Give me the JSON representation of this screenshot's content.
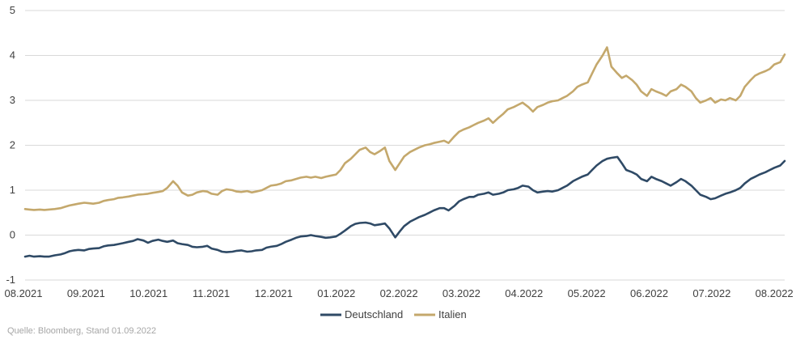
{
  "chart_data": {
    "type": "line",
    "title": "",
    "xlabel": "",
    "ylabel": "",
    "ylim": [
      -1,
      5
    ],
    "y_ticks": [
      "-1",
      "0",
      "1",
      "2",
      "3",
      "4",
      "5"
    ],
    "x_ticks": [
      "08.2021",
      "09.2021",
      "10.2021",
      "11.2021",
      "12.2021",
      "01.2022",
      "02.2022",
      "03.2022",
      "04.2022",
      "05.2022",
      "06.2022",
      "07.2022",
      "08.2022"
    ],
    "grid": "horizontal",
    "legend": "bottom-center",
    "series": [
      {
        "name": "Deutschland",
        "color": "#2f4a66",
        "values": [
          [
            0,
            -0.48
          ],
          [
            0.3,
            -0.46
          ],
          [
            0.6,
            -0.48
          ],
          [
            1,
            -0.47
          ],
          [
            1.3,
            -0.48
          ],
          [
            1.6,
            -0.48
          ],
          [
            2,
            -0.45
          ],
          [
            2.4,
            -0.43
          ],
          [
            2.7,
            -0.4
          ],
          [
            3,
            -0.36
          ],
          [
            3.3,
            -0.34
          ],
          [
            3.6,
            -0.33
          ],
          [
            4,
            -0.34
          ],
          [
            4.3,
            -0.31
          ],
          [
            4.6,
            -0.3
          ],
          [
            5,
            -0.29
          ],
          [
            5.3,
            -0.25
          ],
          [
            5.6,
            -0.23
          ],
          [
            6,
            -0.22
          ],
          [
            6.3,
            -0.2
          ],
          [
            6.6,
            -0.18
          ],
          [
            7,
            -0.15
          ],
          [
            7.3,
            -0.13
          ],
          [
            7.6,
            -0.09
          ],
          [
            8,
            -0.12
          ],
          [
            8.3,
            -0.17
          ],
          [
            8.6,
            -0.13
          ],
          [
            9,
            -0.1
          ],
          [
            9.3,
            -0.13
          ],
          [
            9.6,
            -0.15
          ],
          [
            10,
            -0.12
          ],
          [
            10.3,
            -0.18
          ],
          [
            10.6,
            -0.2
          ],
          [
            11,
            -0.22
          ],
          [
            11.3,
            -0.26
          ],
          [
            11.6,
            -0.27
          ],
          [
            12,
            -0.26
          ],
          [
            12.3,
            -0.24
          ],
          [
            12.6,
            -0.3
          ],
          [
            13,
            -0.33
          ],
          [
            13.3,
            -0.37
          ],
          [
            13.6,
            -0.38
          ],
          [
            14,
            -0.37
          ],
          [
            14.3,
            -0.35
          ],
          [
            14.6,
            -0.34
          ],
          [
            15,
            -0.37
          ],
          [
            15.3,
            -0.36
          ],
          [
            15.6,
            -0.34
          ],
          [
            16,
            -0.33
          ],
          [
            16.3,
            -0.28
          ],
          [
            16.6,
            -0.26
          ],
          [
            17,
            -0.24
          ],
          [
            17.3,
            -0.2
          ],
          [
            17.6,
            -0.15
          ],
          [
            18,
            -0.1
          ],
          [
            18.3,
            -0.06
          ],
          [
            18.6,
            -0.03
          ],
          [
            19,
            -0.02
          ],
          [
            19.3,
            0
          ],
          [
            19.6,
            -0.02
          ],
          [
            20,
            -0.04
          ],
          [
            20.3,
            -0.06
          ],
          [
            20.6,
            -0.05
          ],
          [
            21,
            -0.03
          ],
          [
            21.3,
            0.03
          ],
          [
            21.6,
            0.1
          ],
          [
            22,
            0.2
          ],
          [
            22.3,
            0.25
          ],
          [
            22.6,
            0.27
          ],
          [
            23,
            0.28
          ],
          [
            23.3,
            0.26
          ],
          [
            23.6,
            0.22
          ],
          [
            24,
            0.24
          ],
          [
            24.3,
            0.26
          ],
          [
            24.6,
            0.15
          ],
          [
            25,
            -0.05
          ],
          [
            25.3,
            0.08
          ],
          [
            25.6,
            0.2
          ],
          [
            26,
            0.3
          ],
          [
            26.3,
            0.35
          ],
          [
            26.6,
            0.4
          ],
          [
            27,
            0.45
          ],
          [
            27.3,
            0.5
          ],
          [
            27.6,
            0.55
          ],
          [
            28,
            0.6
          ],
          [
            28.3,
            0.6
          ],
          [
            28.6,
            0.55
          ],
          [
            29,
            0.65
          ],
          [
            29.3,
            0.75
          ],
          [
            29.6,
            0.8
          ],
          [
            30,
            0.85
          ],
          [
            30.3,
            0.85
          ],
          [
            30.6,
            0.9
          ],
          [
            31,
            0.92
          ],
          [
            31.3,
            0.95
          ],
          [
            31.6,
            0.9
          ],
          [
            32,
            0.92
          ],
          [
            32.3,
            0.95
          ],
          [
            32.6,
            1.0
          ],
          [
            33,
            1.02
          ],
          [
            33.3,
            1.05
          ],
          [
            33.6,
            1.1
          ],
          [
            34,
            1.08
          ],
          [
            34.3,
            1.0
          ],
          [
            34.6,
            0.95
          ],
          [
            35,
            0.97
          ],
          [
            35.3,
            0.98
          ],
          [
            35.6,
            0.97
          ],
          [
            36,
            1.0
          ],
          [
            36.3,
            1.05
          ],
          [
            36.6,
            1.1
          ],
          [
            37,
            1.2
          ],
          [
            37.3,
            1.25
          ],
          [
            37.6,
            1.3
          ],
          [
            38,
            1.35
          ],
          [
            38.3,
            1.45
          ],
          [
            38.6,
            1.55
          ],
          [
            39,
            1.65
          ],
          [
            39.3,
            1.7
          ],
          [
            39.6,
            1.72
          ],
          [
            40,
            1.74
          ],
          [
            40.3,
            1.6
          ],
          [
            40.6,
            1.45
          ],
          [
            41,
            1.4
          ],
          [
            41.3,
            1.35
          ],
          [
            41.6,
            1.25
          ],
          [
            42,
            1.2
          ],
          [
            42.3,
            1.3
          ],
          [
            42.6,
            1.25
          ],
          [
            43,
            1.2
          ],
          [
            43.3,
            1.15
          ],
          [
            43.6,
            1.1
          ],
          [
            44,
            1.18
          ],
          [
            44.3,
            1.25
          ],
          [
            44.6,
            1.2
          ],
          [
            45,
            1.1
          ],
          [
            45.3,
            1.0
          ],
          [
            45.6,
            0.9
          ],
          [
            46,
            0.85
          ],
          [
            46.3,
            0.8
          ],
          [
            46.6,
            0.82
          ],
          [
            47,
            0.88
          ],
          [
            47.3,
            0.92
          ],
          [
            47.6,
            0.95
          ],
          [
            48,
            1.0
          ],
          [
            48.3,
            1.05
          ],
          [
            48.6,
            1.15
          ],
          [
            49,
            1.25
          ],
          [
            49.3,
            1.3
          ],
          [
            49.6,
            1.35
          ],
          [
            50,
            1.4
          ],
          [
            50.3,
            1.45
          ],
          [
            50.6,
            1.5
          ],
          [
            51,
            1.55
          ],
          [
            51.3,
            1.65
          ]
        ]
      },
      {
        "name": "Italien",
        "color": "#c4a86c",
        "values": [
          [
            0,
            0.58
          ],
          [
            0.3,
            0.57
          ],
          [
            0.6,
            0.56
          ],
          [
            1,
            0.57
          ],
          [
            1.3,
            0.56
          ],
          [
            1.6,
            0.57
          ],
          [
            2,
            0.58
          ],
          [
            2.4,
            0.6
          ],
          [
            2.7,
            0.63
          ],
          [
            3,
            0.66
          ],
          [
            3.3,
            0.68
          ],
          [
            3.6,
            0.7
          ],
          [
            4,
            0.72
          ],
          [
            4.3,
            0.71
          ],
          [
            4.6,
            0.7
          ],
          [
            5,
            0.72
          ],
          [
            5.3,
            0.76
          ],
          [
            5.6,
            0.78
          ],
          [
            6,
            0.8
          ],
          [
            6.3,
            0.83
          ],
          [
            6.6,
            0.84
          ],
          [
            7,
            0.86
          ],
          [
            7.3,
            0.88
          ],
          [
            7.6,
            0.9
          ],
          [
            8,
            0.91
          ],
          [
            8.3,
            0.92
          ],
          [
            8.6,
            0.94
          ],
          [
            9,
            0.96
          ],
          [
            9.3,
            0.98
          ],
          [
            9.6,
            1.05
          ],
          [
            10,
            1.2
          ],
          [
            10.3,
            1.1
          ],
          [
            10.6,
            0.95
          ],
          [
            11,
            0.88
          ],
          [
            11.3,
            0.9
          ],
          [
            11.6,
            0.95
          ],
          [
            12,
            0.98
          ],
          [
            12.3,
            0.97
          ],
          [
            12.6,
            0.92
          ],
          [
            13,
            0.9
          ],
          [
            13.3,
            0.98
          ],
          [
            13.6,
            1.02
          ],
          [
            14,
            1.0
          ],
          [
            14.3,
            0.97
          ],
          [
            14.6,
            0.96
          ],
          [
            15,
            0.98
          ],
          [
            15.3,
            0.95
          ],
          [
            15.6,
            0.97
          ],
          [
            16,
            1.0
          ],
          [
            16.3,
            1.05
          ],
          [
            16.6,
            1.1
          ],
          [
            17,
            1.12
          ],
          [
            17.3,
            1.15
          ],
          [
            17.6,
            1.2
          ],
          [
            18,
            1.22
          ],
          [
            18.3,
            1.25
          ],
          [
            18.6,
            1.28
          ],
          [
            19,
            1.3
          ],
          [
            19.3,
            1.28
          ],
          [
            19.6,
            1.3
          ],
          [
            20,
            1.27
          ],
          [
            20.3,
            1.3
          ],
          [
            20.6,
            1.32
          ],
          [
            21,
            1.35
          ],
          [
            21.3,
            1.45
          ],
          [
            21.6,
            1.6
          ],
          [
            22,
            1.7
          ],
          [
            22.3,
            1.8
          ],
          [
            22.6,
            1.9
          ],
          [
            23,
            1.95
          ],
          [
            23.3,
            1.85
          ],
          [
            23.6,
            1.8
          ],
          [
            24,
            1.88
          ],
          [
            24.3,
            1.95
          ],
          [
            24.6,
            1.65
          ],
          [
            25,
            1.45
          ],
          [
            25.3,
            1.6
          ],
          [
            25.6,
            1.75
          ],
          [
            26,
            1.85
          ],
          [
            26.3,
            1.9
          ],
          [
            26.6,
            1.95
          ],
          [
            27,
            2.0
          ],
          [
            27.3,
            2.02
          ],
          [
            27.6,
            2.05
          ],
          [
            28,
            2.08
          ],
          [
            28.3,
            2.1
          ],
          [
            28.6,
            2.05
          ],
          [
            29,
            2.2
          ],
          [
            29.3,
            2.3
          ],
          [
            29.6,
            2.35
          ],
          [
            30,
            2.4
          ],
          [
            30.3,
            2.45
          ],
          [
            30.6,
            2.5
          ],
          [
            31,
            2.55
          ],
          [
            31.3,
            2.6
          ],
          [
            31.6,
            2.5
          ],
          [
            32,
            2.62
          ],
          [
            32.3,
            2.7
          ],
          [
            32.6,
            2.8
          ],
          [
            33,
            2.85
          ],
          [
            33.3,
            2.9
          ],
          [
            33.6,
            2.95
          ],
          [
            34,
            2.85
          ],
          [
            34.3,
            2.75
          ],
          [
            34.6,
            2.85
          ],
          [
            35,
            2.9
          ],
          [
            35.3,
            2.95
          ],
          [
            35.6,
            2.98
          ],
          [
            36,
            3.0
          ],
          [
            36.3,
            3.05
          ],
          [
            36.6,
            3.1
          ],
          [
            37,
            3.2
          ],
          [
            37.3,
            3.3
          ],
          [
            37.6,
            3.35
          ],
          [
            38,
            3.4
          ],
          [
            38.3,
            3.6
          ],
          [
            38.6,
            3.8
          ],
          [
            39,
            4.0
          ],
          [
            39.3,
            4.18
          ],
          [
            39.6,
            3.75
          ],
          [
            40,
            3.6
          ],
          [
            40.3,
            3.5
          ],
          [
            40.6,
            3.55
          ],
          [
            41,
            3.45
          ],
          [
            41.3,
            3.35
          ],
          [
            41.6,
            3.2
          ],
          [
            42,
            3.1
          ],
          [
            42.3,
            3.25
          ],
          [
            42.6,
            3.2
          ],
          [
            43,
            3.15
          ],
          [
            43.3,
            3.1
          ],
          [
            43.6,
            3.2
          ],
          [
            44,
            3.25
          ],
          [
            44.3,
            3.35
          ],
          [
            44.6,
            3.3
          ],
          [
            45,
            3.2
          ],
          [
            45.3,
            3.05
          ],
          [
            45.6,
            2.95
          ],
          [
            46,
            3.0
          ],
          [
            46.3,
            3.05
          ],
          [
            46.6,
            2.95
          ],
          [
            47,
            3.02
          ],
          [
            47.3,
            3.0
          ],
          [
            47.6,
            3.05
          ],
          [
            48,
            3.0
          ],
          [
            48.3,
            3.1
          ],
          [
            48.6,
            3.3
          ],
          [
            49,
            3.45
          ],
          [
            49.3,
            3.55
          ],
          [
            49.6,
            3.6
          ],
          [
            50,
            3.65
          ],
          [
            50.3,
            3.7
          ],
          [
            50.6,
            3.8
          ],
          [
            51,
            3.85
          ],
          [
            51.3,
            4.02
          ]
        ]
      }
    ]
  },
  "footer": {
    "source": "Quelle: Bloomberg, Stand 01.09.2022"
  }
}
